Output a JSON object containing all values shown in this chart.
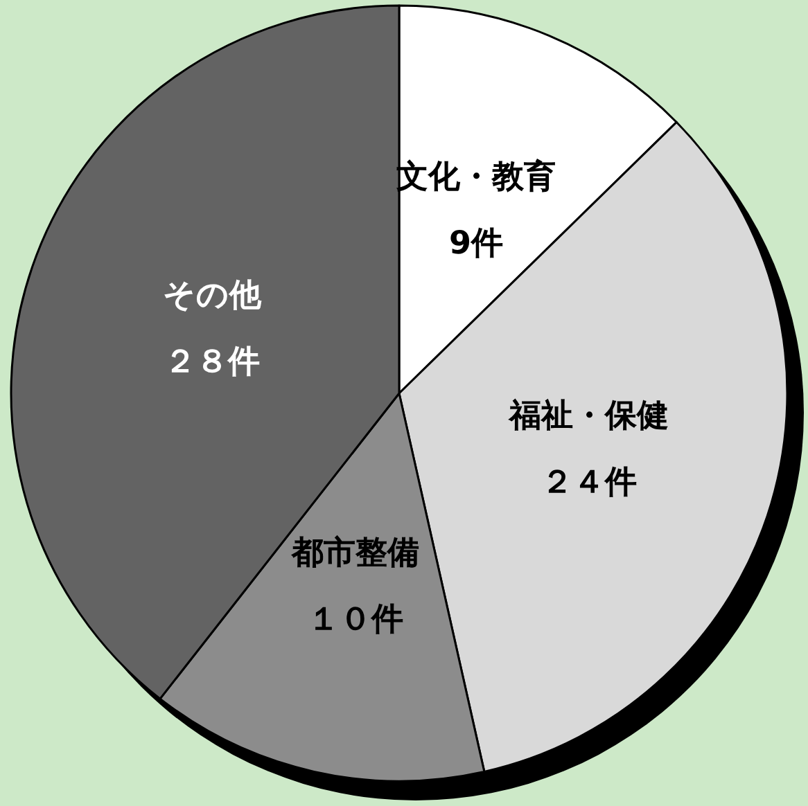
{
  "chart_data": {
    "type": "pie",
    "categories": [
      "文化・教育",
      "福祉・保健",
      "都市整備",
      "その他"
    ],
    "values": [
      9,
      24,
      10,
      28
    ],
    "value_labels": [
      "9件",
      "２４件",
      "１０件",
      "２８件"
    ],
    "colors": [
      "#ffffff",
      "#d9d9d9",
      "#8c8c8c",
      "#636363"
    ],
    "legend": false
  }
}
